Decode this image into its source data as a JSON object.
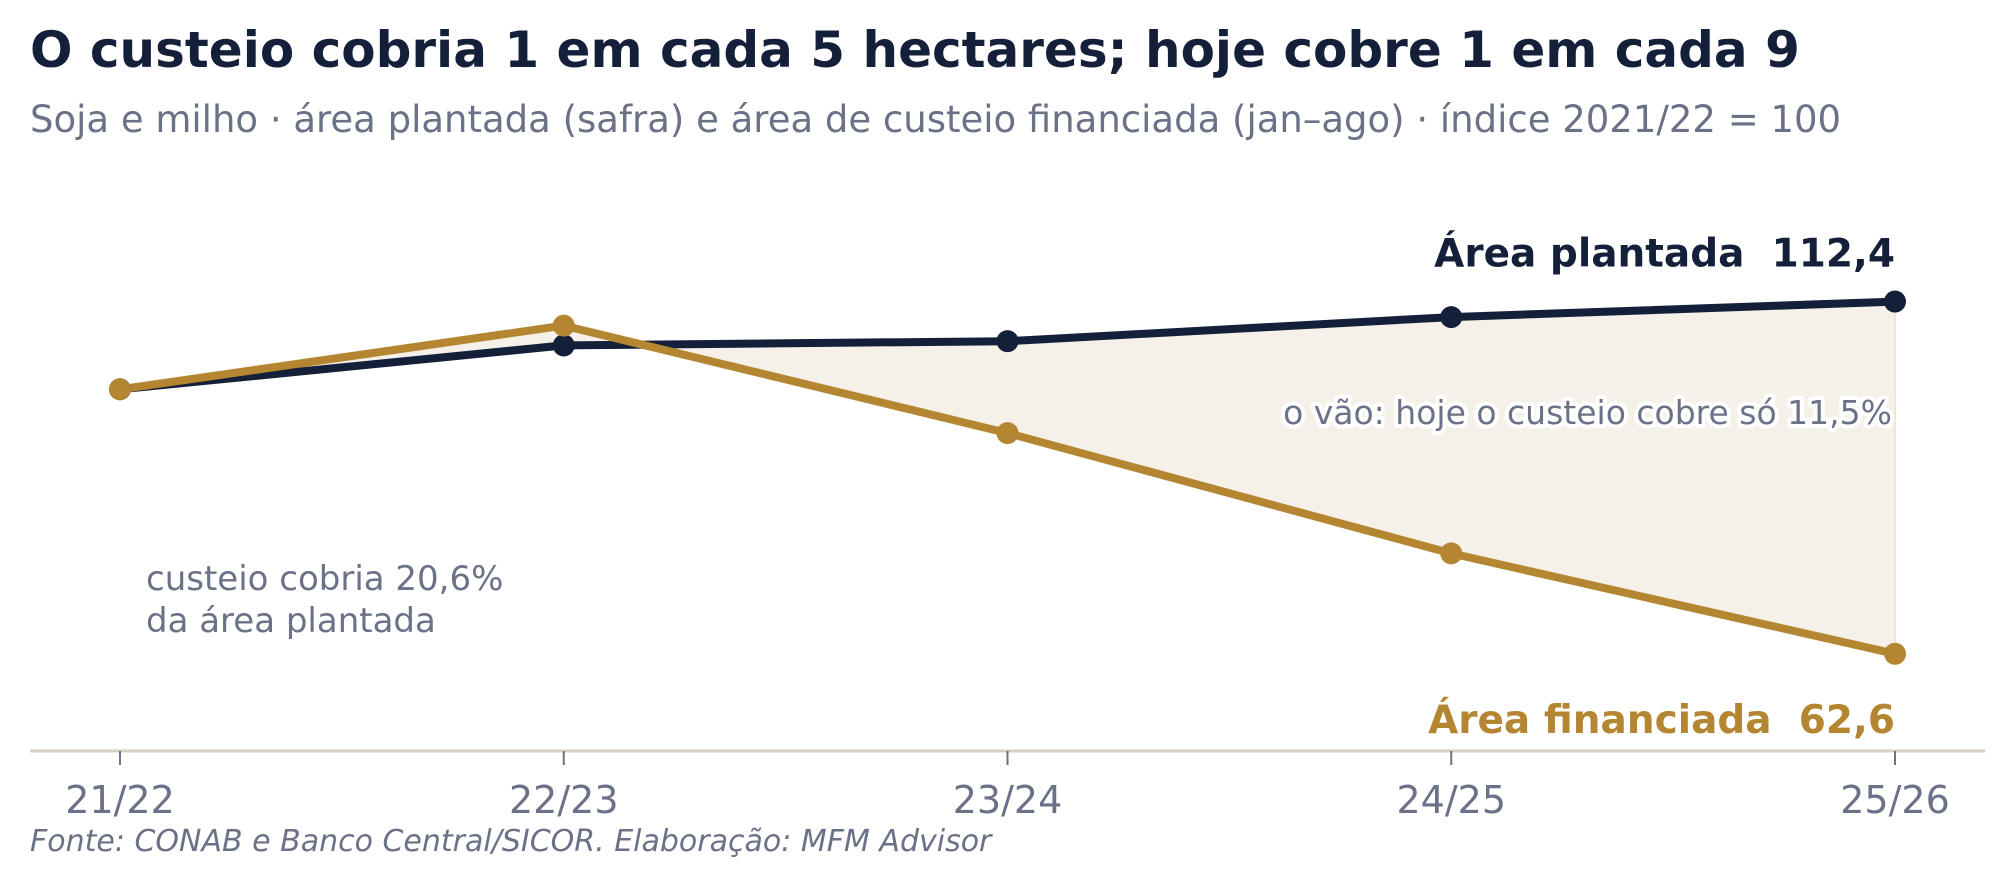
{
  "header": {
    "title": "O custeio cobria 1 em cada 5 hectares; hoje cobre 1 em cada 9",
    "subtitle": "Soja e milho · área plantada (safra) e área de custeio financiada (jan–ago) · índice 2021/22 = 100"
  },
  "footer": {
    "source": "Fonte: CONAB e Banco Central/SICOR. Elaboração: MFM Advisor"
  },
  "colors": {
    "planted": "#14203a",
    "financed": "#b58631",
    "gap_fill": "#f5f0e8",
    "axis": "#d6cfc2",
    "muted_text": "#6b7186"
  },
  "chart_data": {
    "type": "line",
    "categories": [
      "21/22",
      "22/23",
      "23/24",
      "24/25",
      "25/26"
    ],
    "series": [
      {
        "name": "Área plantada",
        "values": [
          100,
          106.2,
          106.8,
          110.2,
          112.4
        ],
        "end_label": "Área plantada  112,4"
      },
      {
        "name": "Área financiada",
        "values": [
          100,
          109.0,
          93.8,
          76.8,
          62.6
        ],
        "end_label": "Área financiada  62,6"
      }
    ],
    "ylim": [
      49,
      131
    ],
    "xlabel": "",
    "ylabel": "",
    "grid": false,
    "annotations": {
      "gap": "o vão: hoje o custeio cobre só 11,5%",
      "start_line1": "custeio cobria 20,6%",
      "start_line2": "da área plantada"
    }
  }
}
